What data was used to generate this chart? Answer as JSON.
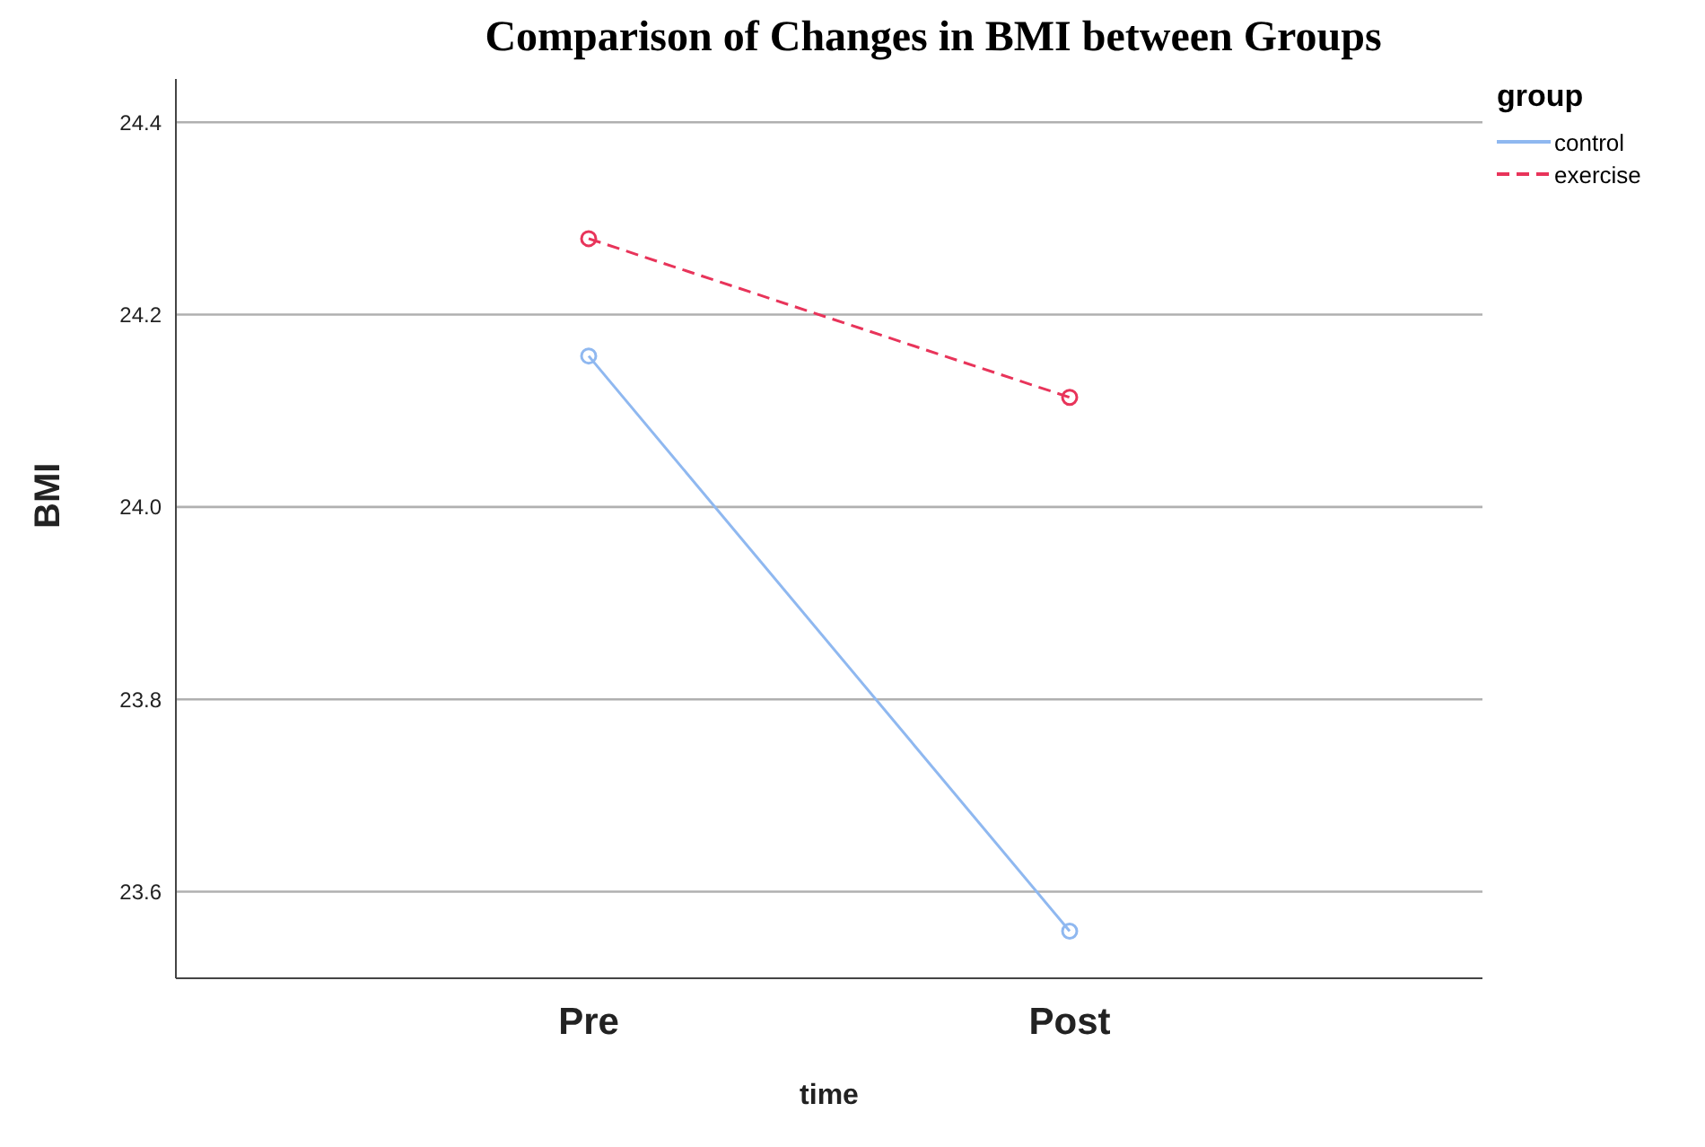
{
  "chart_data": {
    "type": "line",
    "title": "Comparison of Changes in BMI between Groups",
    "xlabel": "time",
    "ylabel": "BMI",
    "legend_title": "group",
    "categories": [
      "Pre",
      "Post"
    ],
    "series": [
      {
        "name": "control",
        "color": "#8fb8f0",
        "values": [
          24.157,
          23.559
        ],
        "line_style": "solid"
      },
      {
        "name": "exercise",
        "color": "#e8345a",
        "values": [
          24.279,
          24.114
        ],
        "line_style": "dashed"
      }
    ],
    "ylim": [
      23.51,
      24.445
    ],
    "yticks": [
      23.6,
      23.8,
      {
        "value": 24,
        "label": "24.0"
      },
      24.2,
      24.4
    ],
    "grid": "y",
    "legend": "top right",
    "marker": "circle"
  }
}
